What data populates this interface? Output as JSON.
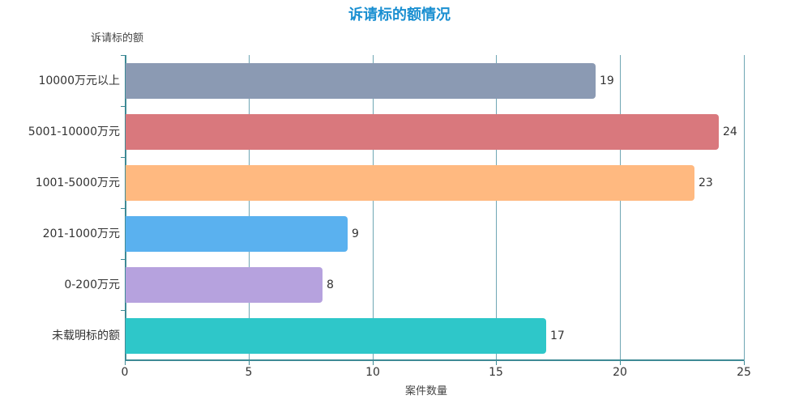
{
  "chart_data": {
    "type": "bar",
    "orientation": "horizontal",
    "title": "诉请标的额情况",
    "xlabel": "案件数量",
    "ylabel": "诉请标的额",
    "categories": [
      "10000万元以上",
      "5001-10000万元",
      "1001-5000万元",
      "201-1000万元",
      "0-200万元",
      "未载明标的额"
    ],
    "values": [
      19,
      24,
      23,
      9,
      8,
      17
    ],
    "colors": [
      "#8b9ab3",
      "#d9787d",
      "#ffb980",
      "#5ab1ef",
      "#b6a2de",
      "#2ec7c9"
    ],
    "xlim": [
      0,
      25
    ],
    "xticks": [
      "0",
      "5",
      "10",
      "15",
      "20",
      "25"
    ],
    "grid": true,
    "data_labels": true
  }
}
